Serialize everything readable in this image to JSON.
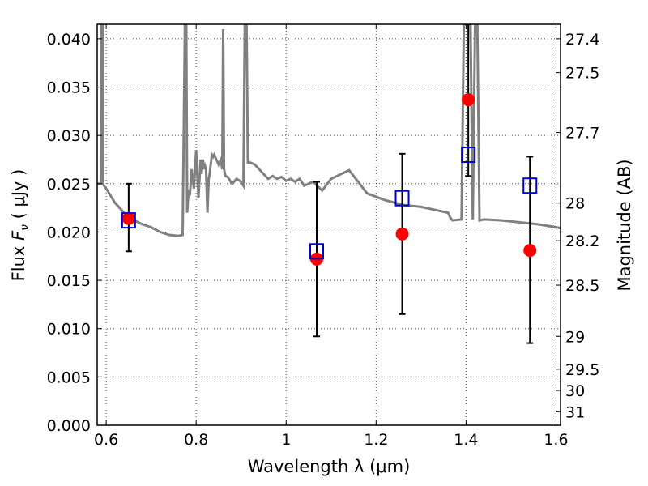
{
  "chart_data": {
    "type": "scatter",
    "xlabel": "Wavelength  λ (μm)",
    "ylabel_prefix": "Flux ",
    "ylabel_symbol": "F",
    "ylabel_subscript": "ν",
    "ylabel_unit": " ( μJy )",
    "y2label": "Magnitude (AB)",
    "xlim": [
      0.58,
      1.61
    ],
    "ylim": [
      0.0,
      0.0415
    ],
    "grid": true,
    "x_ticks": [
      {
        "value": 0.6,
        "label": "0.6"
      },
      {
        "value": 0.8,
        "label": "0.8"
      },
      {
        "value": 1.0,
        "label": "1"
      },
      {
        "value": 1.2,
        "label": "1.2"
      },
      {
        "value": 1.4,
        "label": "1.4"
      },
      {
        "value": 1.6,
        "label": "1.6"
      }
    ],
    "y_ticks": [
      {
        "value": 0.0,
        "label": "0.000"
      },
      {
        "value": 0.005,
        "label": "0.005"
      },
      {
        "value": 0.01,
        "label": "0.010"
      },
      {
        "value": 0.015,
        "label": "0.015"
      },
      {
        "value": 0.02,
        "label": "0.020"
      },
      {
        "value": 0.025,
        "label": "0.025"
      },
      {
        "value": 0.03,
        "label": "0.030"
      },
      {
        "value": 0.035,
        "label": "0.035"
      },
      {
        "value": 0.04,
        "label": "0.040"
      }
    ],
    "y2_ticks": [
      {
        "label": "27.4",
        "flux": 0.04
      },
      {
        "label": "27.5",
        "flux": 0.0365
      },
      {
        "label": "27.7",
        "flux": 0.0303
      },
      {
        "label": "28",
        "flux": 0.023
      },
      {
        "label": "28.2",
        "flux": 0.0191
      },
      {
        "label": "28.5",
        "flux": 0.0145
      },
      {
        "label": "29",
        "flux": 0.0092
      },
      {
        "label": "29.5",
        "flux": 0.0058
      },
      {
        "label": "30",
        "flux": 0.0036
      },
      {
        "label": "31",
        "flux": 0.0014
      }
    ],
    "model_color": "#808080",
    "model_spectrum": {
      "x": [
        0.58,
        0.588,
        0.59,
        0.591,
        0.592,
        0.593,
        0.595,
        0.6,
        0.62,
        0.65,
        0.68,
        0.7,
        0.72,
        0.74,
        0.76,
        0.77,
        0.775,
        0.776,
        0.778,
        0.78,
        0.782,
        0.784,
        0.786,
        0.79,
        0.795,
        0.8,
        0.805,
        0.81,
        0.812,
        0.815,
        0.818,
        0.82,
        0.822,
        0.825,
        0.828,
        0.83,
        0.835,
        0.838,
        0.84,
        0.845,
        0.85,
        0.855,
        0.858,
        0.86,
        0.862,
        0.865,
        0.87,
        0.88,
        0.89,
        0.9,
        0.905,
        0.908,
        0.91,
        0.912,
        0.915,
        0.92,
        0.93,
        0.94,
        0.95,
        0.96,
        0.97,
        0.98,
        0.99,
        1.0,
        1.01,
        1.02,
        1.03,
        1.04,
        1.06,
        1.08,
        1.1,
        1.14,
        1.18,
        1.22,
        1.26,
        1.3,
        1.34,
        1.36,
        1.362,
        1.365,
        1.368,
        1.37,
        1.39,
        1.395,
        1.4,
        1.402,
        1.405,
        1.41,
        1.415,
        1.42,
        1.425,
        1.43,
        1.44,
        1.48,
        1.52,
        1.56,
        1.6,
        1.61
      ],
      "y": [
        0.025,
        0.025,
        0.042,
        0.042,
        0.042,
        0.025,
        0.0248,
        0.0245,
        0.023,
        0.0215,
        0.0208,
        0.0205,
        0.02,
        0.0197,
        0.0196,
        0.0197,
        0.0415,
        0.0415,
        0.0415,
        0.022,
        0.0235,
        0.024,
        0.0238,
        0.0265,
        0.0245,
        0.0285,
        0.0235,
        0.0275,
        0.026,
        0.0275,
        0.0265,
        0.0268,
        0.0265,
        0.022,
        0.0255,
        0.026,
        0.028,
        0.0278,
        0.028,
        0.0275,
        0.027,
        0.0275,
        0.0265,
        0.041,
        0.0265,
        0.0258,
        0.0257,
        0.025,
        0.0255,
        0.0252,
        0.0248,
        0.0415,
        0.0415,
        0.0415,
        0.0272,
        0.0272,
        0.027,
        0.0265,
        0.026,
        0.0255,
        0.0258,
        0.0255,
        0.0257,
        0.0253,
        0.0255,
        0.0252,
        0.0255,
        0.0248,
        0.0252,
        0.0243,
        0.0255,
        0.0264,
        0.024,
        0.0233,
        0.0228,
        0.0226,
        0.0222,
        0.022,
        0.0218,
        0.0215,
        0.0213,
        0.0212,
        0.0213,
        0.0415,
        0.0415,
        0.0415,
        0.0415,
        0.0415,
        0.0213,
        0.0415,
        0.0415,
        0.0212,
        0.0213,
        0.0212,
        0.021,
        0.0208,
        0.0205,
        0.0204
      ]
    },
    "series": [
      {
        "marker": "circle",
        "color": "#ff0000",
        "x": [
          0.65,
          1.068,
          1.258,
          1.405,
          1.542
        ],
        "y": [
          0.0214,
          0.0172,
          0.0198,
          0.0337,
          0.0181
        ]
      },
      {
        "marker": "square",
        "color": "#0000cc",
        "x": [
          0.65,
          1.068,
          1.258,
          1.405,
          1.542
        ],
        "y": [
          0.0212,
          0.018,
          0.0235,
          0.028,
          0.0248
        ],
        "yerr_low": [
          0.018,
          0.0092,
          0.0115,
          0.0258,
          0.0085
        ],
        "yerr_high": [
          0.025,
          0.0252,
          0.0281,
          0.0415,
          0.0278
        ]
      }
    ]
  }
}
